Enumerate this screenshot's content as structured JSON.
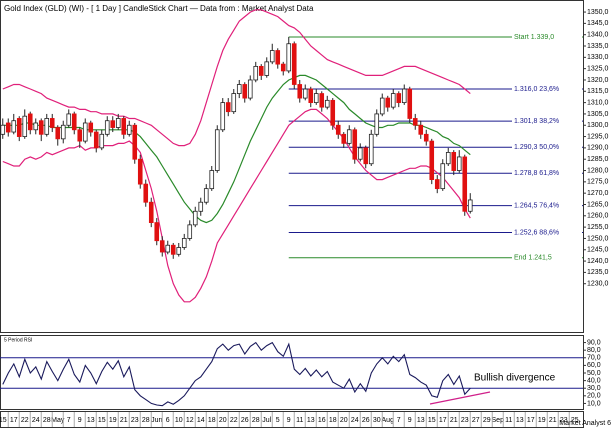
{
  "chart_data": {
    "type": "candlestick",
    "title": "Gold Index (GLD) (WI) -  [ 1 Day ] CandleStick Chart — Data from : Market Analyst Data",
    "categories": [
      "15",
      null,
      "17",
      null,
      "22",
      null,
      "24",
      null,
      "28",
      null,
      "May",
      null,
      "7",
      null,
      "9",
      null,
      "13",
      null,
      "15",
      null,
      "19",
      null,
      "21",
      null,
      "23",
      null,
      "28",
      null,
      "Jun",
      null,
      "6",
      null,
      "10",
      null,
      "12",
      null,
      "14",
      null,
      "18",
      null,
      "20",
      null,
      "22",
      null,
      "26",
      null,
      "28",
      null,
      "Jul",
      null,
      "5",
      null,
      "9",
      null,
      "11",
      null,
      "13",
      null,
      "16",
      null,
      "18",
      null,
      "20",
      null,
      "24",
      null,
      "26",
      null,
      "30",
      null,
      "Aug",
      null,
      "7",
      null,
      "9",
      null,
      "13",
      null,
      "15",
      null,
      "17",
      null,
      "21",
      null,
      "23",
      null,
      "27",
      null,
      "29",
      null,
      "Sep",
      null,
      "11",
      null,
      "13",
      null,
      "17",
      null,
      "19",
      null,
      "21",
      null,
      "23",
      null,
      "25",
      null
    ],
    "ohlc": [
      [
        1296,
        1303,
        1294,
        1300
      ],
      [
        1301,
        1303,
        1295,
        1297
      ],
      [
        1297,
        1305,
        1296,
        1302
      ],
      [
        1303,
        1304,
        1293,
        1295
      ],
      [
        1295,
        1307,
        1294,
        1304
      ],
      [
        1305,
        1306,
        1296,
        1298
      ],
      [
        1298,
        1303,
        1296,
        1301
      ],
      [
        1302,
        1303,
        1293,
        1296
      ],
      [
        1296,
        1305,
        1295,
        1303
      ],
      [
        1303,
        1305,
        1297,
        1299
      ],
      [
        1299,
        1300,
        1291,
        1294
      ],
      [
        1294,
        1302,
        1292,
        1300
      ],
      [
        1300,
        1307,
        1299,
        1305
      ],
      [
        1305,
        1306,
        1296,
        1298
      ],
      [
        1298,
        1299,
        1290,
        1293
      ],
      [
        1293,
        1303,
        1292,
        1301
      ],
      [
        1301,
        1302,
        1295,
        1297
      ],
      [
        1297,
        1298,
        1288,
        1290
      ],
      [
        1290,
        1298,
        1289,
        1296
      ],
      [
        1296,
        1304,
        1295,
        1302
      ],
      [
        1302,
        1304,
        1297,
        1299
      ],
      [
        1299,
        1305,
        1298,
        1303
      ],
      [
        1303,
        1304,
        1294,
        1296
      ],
      [
        1296,
        1302,
        1295,
        1300
      ],
      [
        1300,
        1301,
        1283,
        1285
      ],
      [
        1285,
        1287,
        1272,
        1274
      ],
      [
        1274,
        1276,
        1264,
        1266
      ],
      [
        1266,
        1268,
        1255,
        1257
      ],
      [
        1257,
        1259,
        1247,
        1249
      ],
      [
        1249,
        1251,
        1242,
        1244
      ],
      [
        1244,
        1249,
        1243,
        1247
      ],
      [
        1247,
        1248,
        1241,
        1243
      ],
      [
        1243,
        1248,
        1242,
        1246
      ],
      [
        1246,
        1252,
        1245,
        1250
      ],
      [
        1250,
        1258,
        1249,
        1256
      ],
      [
        1256,
        1264,
        1255,
        1262
      ],
      [
        1262,
        1268,
        1260,
        1266
      ],
      [
        1266,
        1274,
        1265,
        1272
      ],
      [
        1272,
        1282,
        1271,
        1280
      ],
      [
        1280,
        1300,
        1279,
        1298
      ],
      [
        1298,
        1312,
        1297,
        1310
      ],
      [
        1310,
        1312,
        1304,
        1306
      ],
      [
        1306,
        1316,
        1305,
        1314
      ],
      [
        1314,
        1320,
        1312,
        1318
      ],
      [
        1318,
        1319,
        1310,
        1312
      ],
      [
        1312,
        1322,
        1311,
        1320
      ],
      [
        1320,
        1328,
        1319,
        1326
      ],
      [
        1326,
        1327,
        1320,
        1322
      ],
      [
        1322,
        1330,
        1321,
        1328
      ],
      [
        1328,
        1336,
        1327,
        1333
      ],
      [
        1333,
        1334,
        1325,
        1327
      ],
      [
        1327,
        1328,
        1322,
        1324
      ],
      [
        1324,
        1339,
        1323,
        1336
      ],
      [
        1336,
        1337,
        1316,
        1318
      ],
      [
        1318,
        1320,
        1310,
        1312
      ],
      [
        1312,
        1318,
        1311,
        1316
      ],
      [
        1316,
        1317,
        1308,
        1310
      ],
      [
        1310,
        1316,
        1309,
        1314
      ],
      [
        1314,
        1315,
        1306,
        1308
      ],
      [
        1308,
        1313,
        1307,
        1311
      ],
      [
        1311,
        1312,
        1298,
        1300
      ],
      [
        1300,
        1302,
        1294,
        1296
      ],
      [
        1296,
        1297,
        1290,
        1292
      ],
      [
        1292,
        1300,
        1291,
        1298
      ],
      [
        1298,
        1299,
        1283,
        1285
      ],
      [
        1285,
        1292,
        1284,
        1290
      ],
      [
        1290,
        1291,
        1281,
        1283
      ],
      [
        1283,
        1298,
        1282,
        1296
      ],
      [
        1296,
        1307,
        1295,
        1305
      ],
      [
        1305,
        1314,
        1304,
        1312
      ],
      [
        1312,
        1313,
        1306,
        1308
      ],
      [
        1308,
        1316,
        1307,
        1314
      ],
      [
        1314,
        1315,
        1308,
        1310
      ],
      [
        1310,
        1318,
        1309,
        1316
      ],
      [
        1316,
        1317,
        1301,
        1303
      ],
      [
        1303,
        1305,
        1298,
        1300
      ],
      [
        1300,
        1302,
        1294,
        1296
      ],
      [
        1296,
        1298,
        1291,
        1293
      ],
      [
        1293,
        1294,
        1274,
        1276
      ],
      [
        1276,
        1278,
        1270,
        1272
      ],
      [
        1272,
        1285,
        1271,
        1283
      ],
      [
        1283,
        1290,
        1282,
        1288
      ],
      [
        1288,
        1289,
        1278,
        1280
      ],
      [
        1280,
        1289,
        1279,
        1286
      ],
      [
        1286,
        1287,
        1260,
        1262
      ],
      [
        1262,
        1270,
        1261,
        1267
      ],
      null,
      null,
      null,
      null,
      null,
      null,
      null,
      null,
      null,
      null,
      null,
      null,
      null,
      null,
      null,
      null,
      null,
      null,
      null,
      null
    ],
    "up_color": "#ffffff",
    "down_color": "#e01010",
    "bands": [
      {
        "color": "#e0207a",
        "values": [
          1316,
          1317,
          1318,
          1318,
          1317,
          1316,
          1315,
          1314,
          1312,
          1311,
          1310,
          1309,
          1308,
          1308,
          1307,
          1307,
          1306,
          1306,
          1305,
          1305,
          1305,
          1304,
          1304,
          1303,
          1303,
          1302,
          1301,
          1300,
          1298,
          1296,
          1294,
          1292,
          1291,
          1291,
          1292,
          1296,
          1302,
          1310,
          1318,
          1326,
          1333,
          1338,
          1342,
          1346,
          1348,
          1350,
          1351,
          1351,
          1350,
          1349,
          1348,
          1346,
          1344,
          1343,
          1341,
          1338,
          1335,
          1333,
          1331,
          1329,
          1328,
          1327,
          1326,
          1325,
          1324,
          1323,
          1322,
          1322,
          1322,
          1322,
          1323,
          1324,
          1325,
          1326,
          1326,
          1326,
          1325,
          1324,
          1323,
          1322,
          1321,
          1320,
          1319,
          1318,
          1316,
          1314,
          null,
          null,
          null,
          null,
          null,
          null,
          null,
          null,
          null,
          null,
          null,
          null,
          null,
          null,
          null,
          null,
          null,
          null,
          null,
          null
        ]
      },
      {
        "color": "#2a8a2a",
        "values": [
          1300,
          1300,
          1300,
          1300,
          1301,
          1301,
          1300,
          1300,
          1300,
          1299,
          1299,
          1299,
          1299,
          1299,
          1299,
          1298,
          1298,
          1298,
          1298,
          1298,
          1298,
          1298,
          1298,
          1298,
          1297,
          1295,
          1292,
          1289,
          1286,
          1282,
          1278,
          1274,
          1270,
          1266,
          1263,
          1260,
          1258,
          1257,
          1258,
          1261,
          1265,
          1270,
          1275,
          1281,
          1287,
          1293,
          1298,
          1303,
          1308,
          1312,
          1315,
          1318,
          1320,
          1321,
          1322,
          1322,
          1321,
          1320,
          1318,
          1316,
          1314,
          1312,
          1310,
          1307,
          1305,
          1303,
          1301,
          1300,
          1299,
          1299,
          1300,
          1300,
          1301,
          1301,
          1301,
          1300,
          1300,
          1299,
          1298,
          1297,
          1295,
          1294,
          1292,
          1291,
          1289,
          1287,
          null,
          null,
          null,
          null,
          null,
          null,
          null,
          null,
          null,
          null,
          null,
          null,
          null,
          null,
          null,
          null,
          null,
          null,
          null,
          null
        ]
      },
      {
        "color": "#e0207a",
        "values": [
          1284,
          1283,
          1282,
          1282,
          1285,
          1286,
          1285,
          1286,
          1288,
          1287,
          1288,
          1289,
          1290,
          1290,
          1291,
          1289,
          1290,
          1290,
          1291,
          1291,
          1291,
          1292,
          1292,
          1293,
          1291,
          1288,
          1280,
          1272,
          1262,
          1250,
          1238,
          1230,
          1225,
          1222,
          1222,
          1224,
          1228,
          1233,
          1240,
          1248,
          1252,
          1256,
          1260,
          1264,
          1268,
          1272,
          1276,
          1280,
          1284,
          1288,
          1292,
          1296,
          1300,
          1302,
          1304,
          1306,
          1307,
          1307,
          1305,
          1303,
          1300,
          1297,
          1294,
          1290,
          1286,
          1283,
          1280,
          1278,
          1276,
          1276,
          1277,
          1278,
          1279,
          1280,
          1281,
          1281,
          1282,
          1282,
          1281,
          1279,
          1277,
          1274,
          1271,
          1268,
          1263,
          1259,
          null,
          null,
          null,
          null,
          null,
          null,
          null,
          null,
          null,
          null,
          null,
          null,
          null,
          null,
          null,
          null,
          null,
          null,
          null,
          null
        ]
      }
    ],
    "fib_levels": [
      {
        "value": 1339,
        "label": "Start 1.339,0",
        "color": "#2a8a2a"
      },
      {
        "value": 1316,
        "label": "1.316,0 23,6%",
        "color": "#1a1a8c"
      },
      {
        "value": 1301.8,
        "label": "1.301,8 38,2%",
        "color": "#1a1a8c"
      },
      {
        "value": 1290.3,
        "label": "1.290,3 50,0%",
        "color": "#1a1a8c"
      },
      {
        "value": 1278.8,
        "label": "1.278,8 61,8%",
        "color": "#1a1a8c"
      },
      {
        "value": 1264.5,
        "label": "1.264,5 76,4%",
        "color": "#1a1a8c"
      },
      {
        "value": 1252.6,
        "label": "1.252,6 88,6%",
        "color": "#1a1a8c"
      },
      {
        "value": 1241.5,
        "label": "End 1.241,5",
        "color": "#2a8a2a"
      }
    ],
    "ylim": [
      1210,
      1354
    ],
    "yticks": [
      {
        "value": 1230,
        "label": "1230,0"
      },
      {
        "value": 1235,
        "label": "1235,0"
      },
      {
        "value": 1240,
        "label": "1240,0"
      },
      {
        "value": 1245,
        "label": "1245,0"
      },
      {
        "value": 1250,
        "label": "1250,0"
      },
      {
        "value": 1255,
        "label": "1255,0"
      },
      {
        "value": 1260,
        "label": "1260,0"
      },
      {
        "value": 1265,
        "label": "1265,0"
      },
      {
        "value": 1270,
        "label": "1270,0"
      },
      {
        "value": 1275,
        "label": "1275,0"
      },
      {
        "value": 1280,
        "label": "1280,0"
      },
      {
        "value": 1285,
        "label": "1285,0"
      },
      {
        "value": 1290,
        "label": "1290,0"
      },
      {
        "value": 1295,
        "label": "1295,0"
      },
      {
        "value": 1300,
        "label": "1300,0"
      },
      {
        "value": 1305,
        "label": "1305,0"
      },
      {
        "value": 1310,
        "label": "1310,0"
      },
      {
        "value": 1315,
        "label": "1315,0"
      },
      {
        "value": 1320,
        "label": "1320,0"
      },
      {
        "value": 1325,
        "label": "1325,0"
      },
      {
        "value": 1330,
        "label": "1330,0"
      },
      {
        "value": 1335,
        "label": "1335,0"
      },
      {
        "value": 1340,
        "label": "1340,0"
      },
      {
        "value": 1345,
        "label": "1345,0"
      },
      {
        "value": 1350,
        "label": "1350,0"
      }
    ],
    "rsi": {
      "label": "5 Period RSI",
      "color": "#1a1a5c",
      "values": [
        35,
        50,
        62,
        45,
        68,
        50,
        58,
        42,
        65,
        52,
        40,
        55,
        68,
        48,
        38,
        60,
        50,
        36,
        52,
        64,
        55,
        66,
        45,
        58,
        28,
        20,
        15,
        10,
        8,
        7,
        12,
        9,
        14,
        20,
        30,
        40,
        45,
        55,
        65,
        82,
        88,
        80,
        86,
        88,
        75,
        85,
        90,
        80,
        86,
        90,
        78,
        72,
        88,
        55,
        48,
        56,
        46,
        54,
        45,
        52,
        38,
        34,
        30,
        42,
        25,
        36,
        26,
        50,
        62,
        70,
        62,
        72,
        65,
        74,
        48,
        44,
        38,
        34,
        20,
        18,
        40,
        48,
        35,
        46,
        22,
        30,
        null,
        null,
        null,
        null,
        null,
        null,
        null,
        null,
        null,
        null,
        null,
        null,
        null,
        null,
        null,
        null,
        null,
        null,
        null,
        null
      ],
      "levels": [
        70,
        30
      ],
      "level_color": "#1a1a8c",
      "ylim": [
        4,
        96
      ],
      "yticks": [
        {
          "value": 10,
          "label": "10,0"
        },
        {
          "value": 20,
          "label": "20,0"
        },
        {
          "value": 30,
          "label": "30,0"
        },
        {
          "value": 40,
          "label": "40,0"
        },
        {
          "value": 50,
          "label": "50,0"
        },
        {
          "value": 60,
          "label": "60,0"
        },
        {
          "value": 70,
          "label": "70,0"
        },
        {
          "value": 80,
          "label": "80,0"
        },
        {
          "value": 90,
          "label": "90,0"
        }
      ],
      "annotation": "Bullish divergence"
    },
    "footer": "Market Analyst 6"
  }
}
